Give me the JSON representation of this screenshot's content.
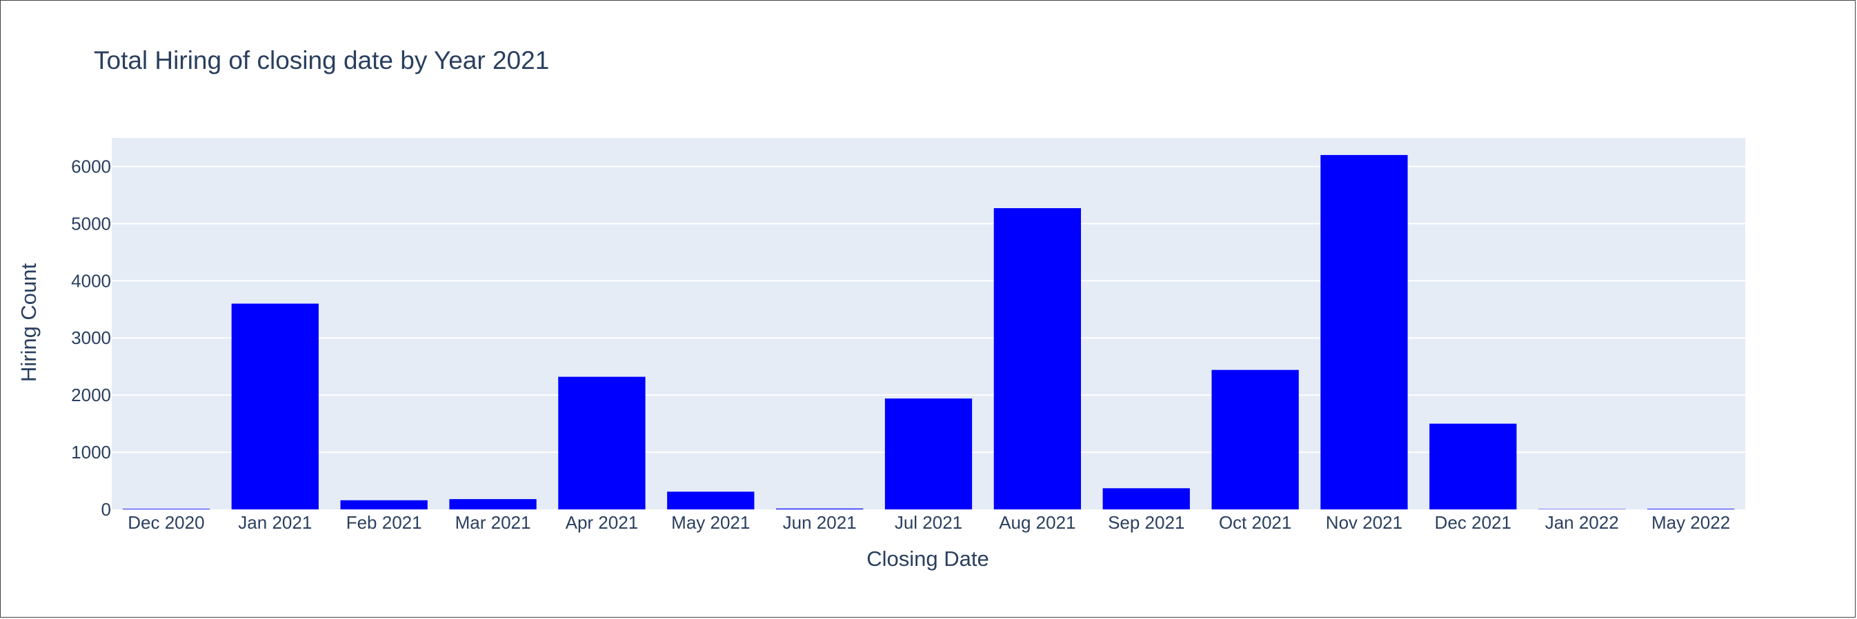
{
  "chart_data": {
    "type": "bar",
    "title": "Total Hiring of closing date by Year 2021",
    "xlabel": "Closing Date",
    "ylabel": "Hiring Count",
    "categories": [
      "Dec 2020",
      "Jan 2021",
      "Feb 2021",
      "Mar 2021",
      "Apr 2021",
      "May 2021",
      "Jun 2021",
      "Jul 2021",
      "Aug 2021",
      "Sep 2021",
      "Oct 2021",
      "Nov 2021",
      "Dec 2021",
      "Jan 2022",
      "May 2022"
    ],
    "values": [
      10,
      3600,
      160,
      180,
      2320,
      310,
      15,
      1940,
      5270,
      370,
      2440,
      6200,
      1500,
      5,
      10
    ],
    "ylim": [
      0,
      6500
    ],
    "yticks": [
      0,
      1000,
      2000,
      3000,
      4000,
      5000,
      6000
    ],
    "grid": true,
    "legend": "none",
    "bar_color": "#0000ff",
    "plot_background": "#e5ecf6",
    "text_color": "#2a3f5f"
  }
}
